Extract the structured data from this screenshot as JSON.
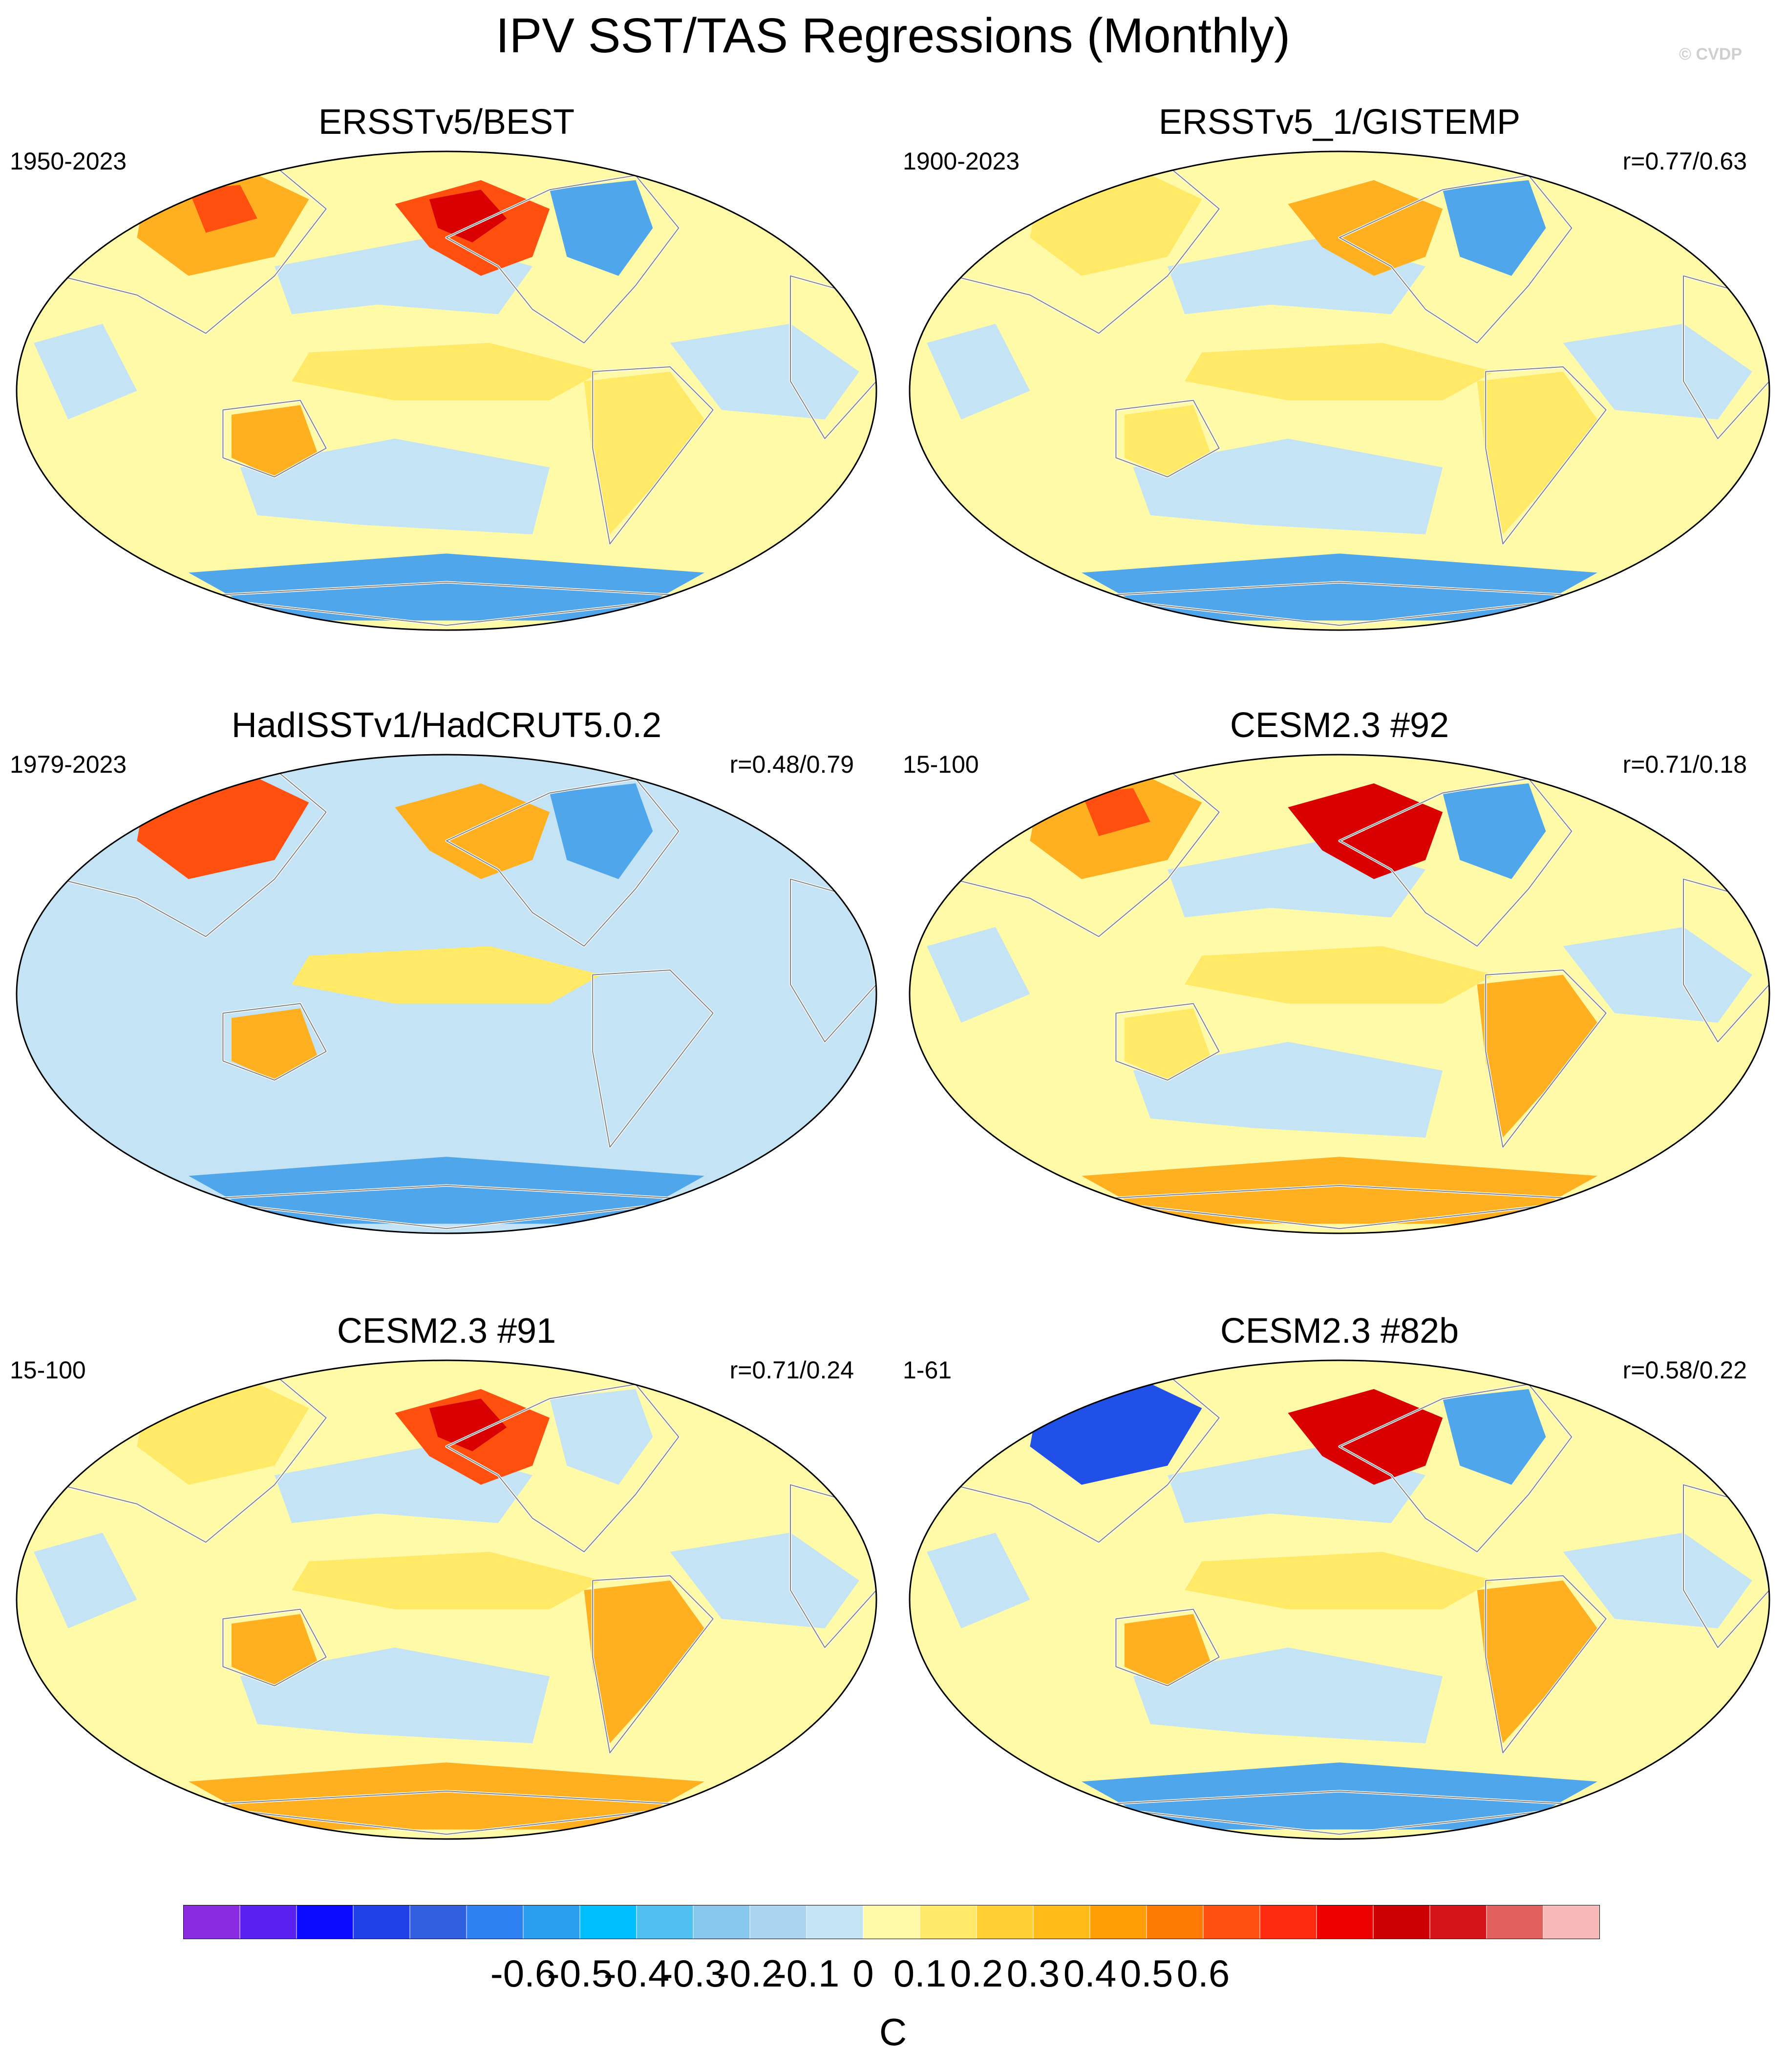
{
  "figure": {
    "title": "IPV SST/TAS Regressions (Monthly)",
    "watermark": "© CVDP"
  },
  "panels": [
    {
      "title": "ERSSTv5/BEST",
      "years": "1950-2023",
      "corr": "",
      "pattern": {
        "base": "light_yellow",
        "pacific_horseshoe": "light_blue",
        "tropical_pacific": "yellow",
        "alaska": "red",
        "siberia": "orange",
        "north_america_east": "blue",
        "australia": "orange",
        "south_america": "yellow",
        "southern_ocean": "blue"
      }
    },
    {
      "title": "ERSSTv5_1/GISTEMP",
      "years": "1900-2023",
      "corr": "r=0.77/0.63",
      "pattern": {
        "base": "light_yellow",
        "pacific_horseshoe": "light_blue",
        "tropical_pacific": "yellow",
        "alaska": "orange",
        "siberia": "yellow",
        "north_america_east": "blue",
        "australia": "yellow",
        "south_america": "yellow",
        "southern_ocean": "blue"
      }
    },
    {
      "title": "HadISSTv1/HadCRUT5.0.2",
      "years": "1979-2023",
      "corr": "r=0.48/0.79",
      "pattern": {
        "base": "light_blue",
        "pacific_horseshoe": "light_blue",
        "tropical_pacific": "yellow",
        "alaska": "orange",
        "siberia": "red",
        "north_america_east": "blue",
        "australia": "orange",
        "south_america": "light_blue",
        "southern_ocean": "blue"
      }
    },
    {
      "title": "CESM2.3 #92",
      "years": "15-100",
      "corr": "r=0.71/0.18",
      "pattern": {
        "base": "light_yellow",
        "pacific_horseshoe": "light_blue",
        "tropical_pacific": "yellow",
        "alaska": "dark_red",
        "siberia": "orange",
        "north_america_east": "blue",
        "australia": "yellow",
        "south_america": "orange",
        "southern_ocean": "orange"
      }
    },
    {
      "title": "CESM2.3 #91",
      "years": "15-100",
      "corr": "r=0.71/0.24",
      "pattern": {
        "base": "light_yellow",
        "pacific_horseshoe": "light_blue",
        "tropical_pacific": "yellow",
        "alaska": "red",
        "siberia": "yellow",
        "north_america_east": "light_blue",
        "australia": "orange",
        "south_america": "orange",
        "southern_ocean": "orange"
      }
    },
    {
      "title": "CESM2.3 #82b",
      "years": "1-61",
      "corr": "r=0.58/0.22",
      "pattern": {
        "base": "light_yellow",
        "pacific_horseshoe": "light_blue",
        "tropical_pacific": "yellow",
        "alaska": "dark_red",
        "siberia": "dark_blue",
        "north_america_east": "blue",
        "australia": "orange",
        "south_america": "orange",
        "southern_ocean": "blue"
      }
    }
  ],
  "colorbar": {
    "colors": [
      "#8a2be2",
      "#5b1ff0",
      "#0a0aff",
      "#2040e8",
      "#3060e0",
      "#2f80f0",
      "#2a9ff0",
      "#00bfff",
      "#4fc0f0",
      "#88c8ec",
      "#aad4f0",
      "#c4e4f6",
      "#fffaa8",
      "#ffe966",
      "#ffd034",
      "#ffbb18",
      "#ff9e06",
      "#ff7a00",
      "#ff5010",
      "#ff2a10",
      "#ee0000",
      "#cc0000",
      "#d4141a",
      "#e06060",
      "#f8b8b8"
    ],
    "tick_labels": [
      "-0.6",
      "-0.5",
      "-0.4",
      "-0.3",
      "-0.2",
      "-0.1",
      "0",
      "0.1",
      "0.2",
      "0.3",
      "0.4",
      "0.5",
      "0.6"
    ],
    "units": "C"
  }
}
